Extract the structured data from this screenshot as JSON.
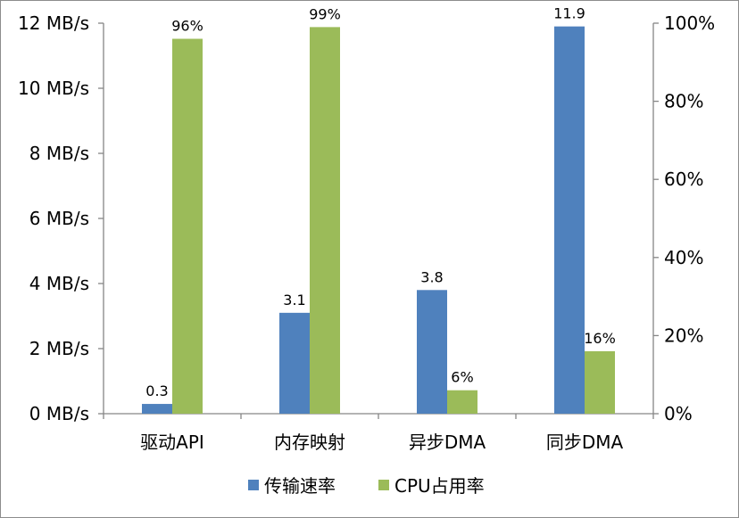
{
  "chart_data": {
    "type": "bar",
    "categories": [
      "驱动API",
      "内存映射",
      "异步DMA",
      "同步DMA"
    ],
    "series": [
      {
        "name": "传输速率",
        "axis": "left",
        "color": "#4f81bd",
        "values": [
          0.3,
          3.1,
          3.8,
          11.9
        ],
        "labels": [
          "0.3",
          "3.1",
          "3.8",
          "11.9"
        ]
      },
      {
        "name": "CPU占用率",
        "axis": "right",
        "color": "#9bbb59",
        "values": [
          96,
          99,
          6,
          16
        ],
        "labels": [
          "96%",
          "99%",
          "6%",
          "16%"
        ]
      }
    ],
    "y_left": {
      "ylim": [
        0,
        12
      ],
      "ticks": [
        0,
        2,
        4,
        6,
        8,
        10,
        12
      ],
      "tick_labels": [
        "0 MB/s",
        "2 MB/s",
        "4 MB/s",
        "6 MB/s",
        "8 MB/s",
        "10 MB/s",
        "12 MB/s"
      ]
    },
    "y_right": {
      "ylim": [
        0,
        100
      ],
      "ticks": [
        0,
        20,
        40,
        60,
        80,
        100
      ],
      "tick_labels": [
        "0%",
        "20%",
        "40%",
        "60%",
        "80%",
        "100%"
      ]
    },
    "legend": {
      "position": "bottom",
      "entries": [
        "传输速率",
        "CPU占用率"
      ]
    },
    "title": "",
    "xlabel": "",
    "grid": false
  },
  "colors": {
    "axis": "#868686",
    "frame": "#8c8c8c"
  }
}
